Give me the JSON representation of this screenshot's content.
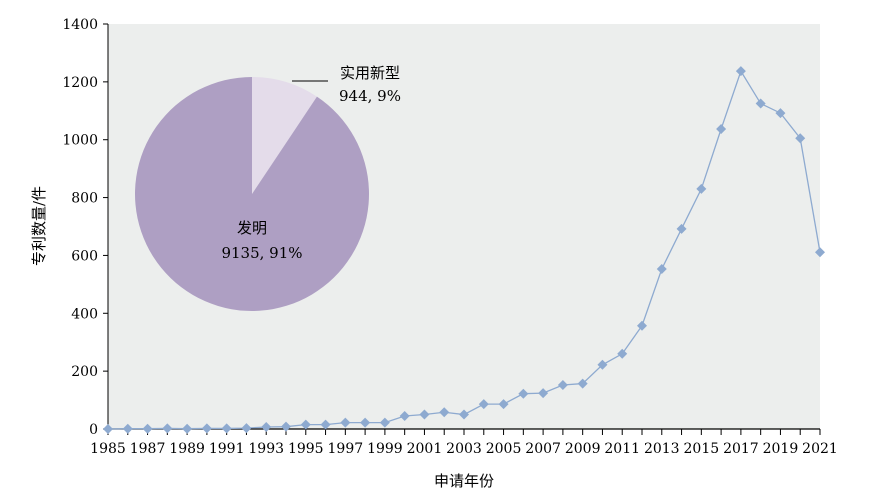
{
  "chart_data": {
    "type": "line",
    "title": "",
    "xlabel": "申请年份",
    "ylabel": "专利数量/件",
    "ylim": [
      0,
      1400
    ],
    "yticks": [
      0,
      200,
      400,
      600,
      800,
      1000,
      1200,
      1400
    ],
    "x": [
      1985,
      1986,
      1987,
      1988,
      1989,
      1990,
      1991,
      1992,
      1993,
      1994,
      1995,
      1996,
      1997,
      1998,
      1999,
      2000,
      2001,
      2002,
      2003,
      2004,
      2005,
      2006,
      2007,
      2008,
      2009,
      2010,
      2011,
      2012,
      2013,
      2014,
      2015,
      2016,
      2017,
      2018,
      2019,
      2020,
      2021
    ],
    "xtick_labels": [
      "1985",
      "1987",
      "1989",
      "1991",
      "1993",
      "1995",
      "1997",
      "1999",
      "2001",
      "2003",
      "2005",
      "2007",
      "2009",
      "2011",
      "2013",
      "2015",
      "2017",
      "2019",
      "2021"
    ],
    "series": [
      {
        "name": "专利数量",
        "color": "#8eaad0",
        "values": [
          0,
          1,
          1,
          2,
          1,
          2,
          2,
          3,
          7,
          8,
          15,
          15,
          22,
          22,
          22,
          45,
          50,
          58,
          50,
          86,
          86,
          122,
          124,
          152,
          157,
          222,
          260,
          357,
          553,
          692,
          830,
          1037,
          1237,
          1125,
          1092,
          1005,
          611
        ]
      }
    ],
    "grid": false,
    "inset_pie": {
      "type": "pie",
      "slices": [
        {
          "name": "实用新型",
          "value": 944,
          "percent": "9%",
          "label": "944, 9%",
          "color": "#e4dcea"
        },
        {
          "name": "发明",
          "value": 9135,
          "percent": "91%",
          "label": "9135, 91%",
          "color": "#ae9fc3"
        }
      ]
    }
  }
}
